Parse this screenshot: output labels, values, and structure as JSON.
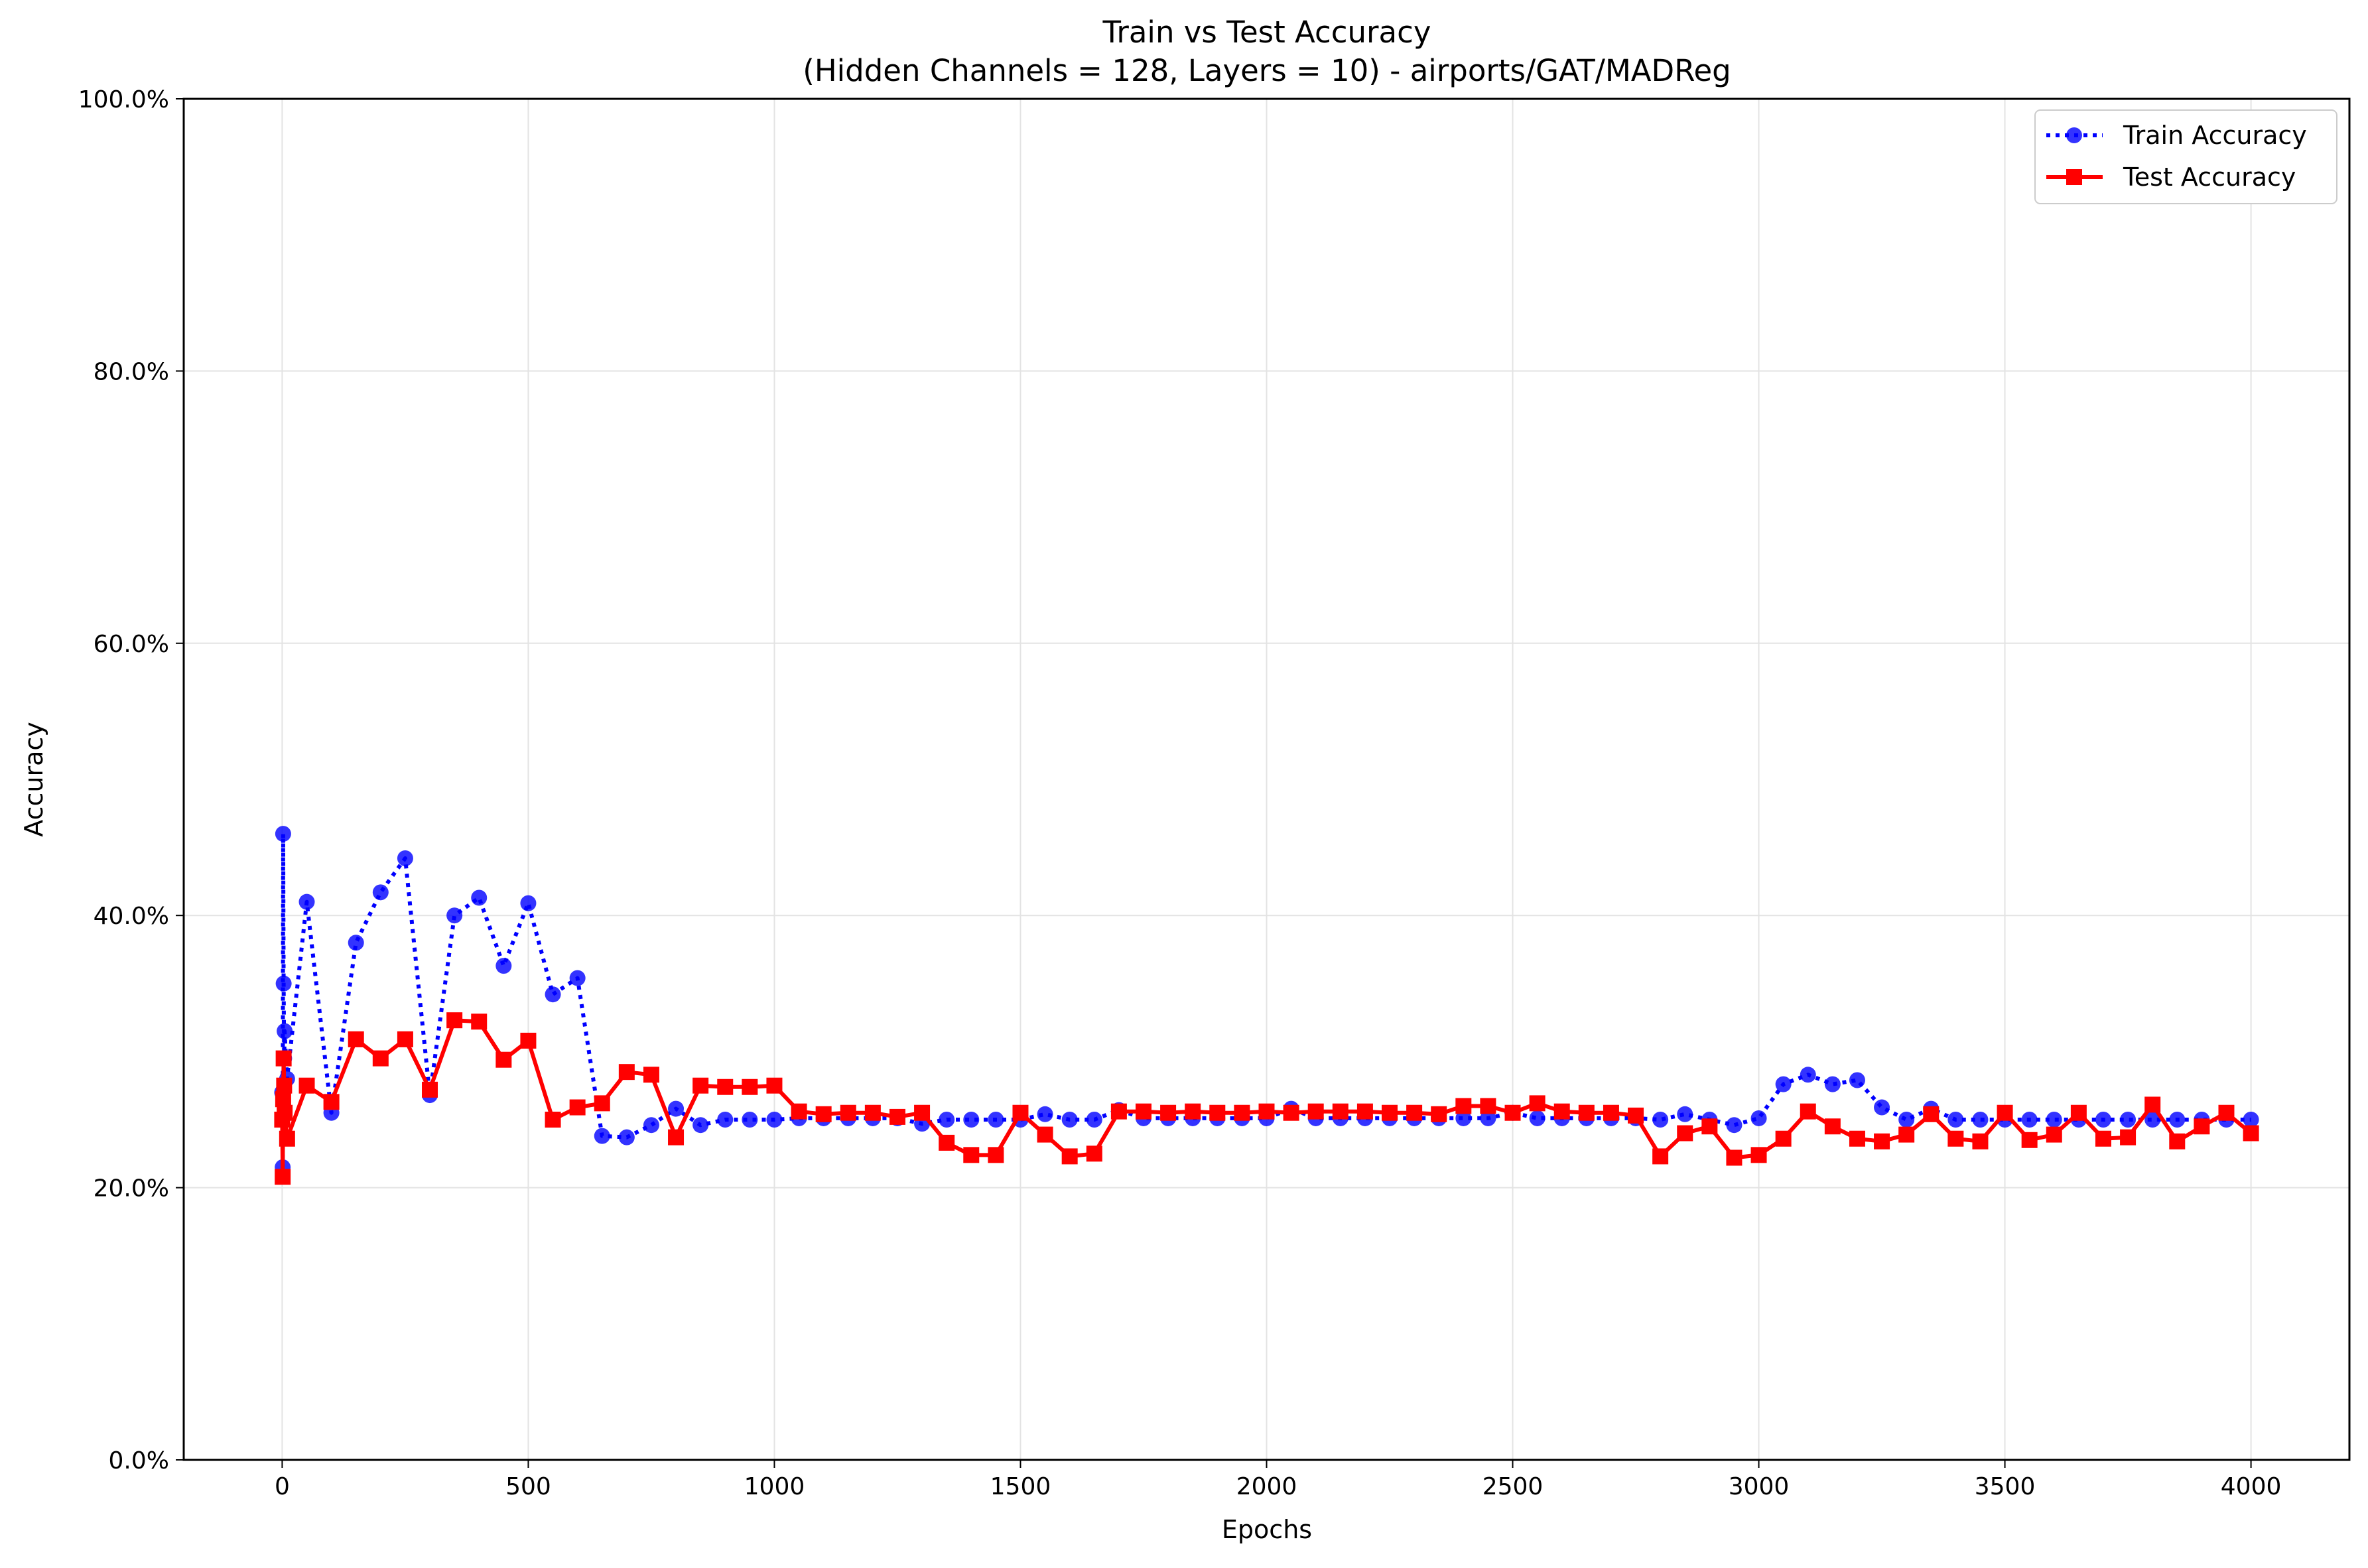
{
  "chart_data": {
    "type": "line",
    "title": "Train vs Test Accuracy",
    "subtitle": "(Hidden Channels = 128, Layers = 10) - airports/GAT/MADReg",
    "xlabel": "Epochs",
    "ylabel": "Accuracy",
    "xlim": [
      -200,
      4200
    ],
    "ylim": [
      0,
      100
    ],
    "grid": true,
    "legend_position": "top-right",
    "x_ticks": [
      0,
      500,
      1000,
      1500,
      2000,
      2500,
      3000,
      3500,
      4000
    ],
    "x_tick_labels": [
      "0",
      "500",
      "1000",
      "1500",
      "2000",
      "2500",
      "3000",
      "3500",
      "4000"
    ],
    "y_ticks": [
      0,
      20,
      40,
      60,
      80,
      100
    ],
    "y_tick_labels": [
      "0.0%",
      "20.0%",
      "40.0%",
      "60.0%",
      "80.0%",
      "100.0%"
    ],
    "series": [
      {
        "name": "Train Accuracy",
        "color": "#0000ff",
        "line_style": "dotted",
        "marker": "circle",
        "x": [
          0,
          1,
          2,
          3,
          4,
          5,
          10,
          50,
          100,
          150,
          200,
          250,
          300,
          350,
          400,
          450,
          500,
          550,
          600,
          650,
          700,
          750,
          800,
          850,
          900,
          950,
          1000,
          1050,
          1100,
          1150,
          1200,
          1250,
          1300,
          1350,
          1400,
          1450,
          1500,
          1550,
          1600,
          1650,
          1700,
          1750,
          1800,
          1850,
          1900,
          1950,
          2000,
          2050,
          2100,
          2150,
          2200,
          2250,
          2300,
          2350,
          2400,
          2450,
          2500,
          2550,
          2600,
          2650,
          2700,
          2750,
          2800,
          2850,
          2900,
          2950,
          3000,
          3050,
          3100,
          3150,
          3200,
          3250,
          3300,
          3350,
          3400,
          3450,
          3500,
          3550,
          3600,
          3650,
          3700,
          3750,
          3800,
          3850,
          3900,
          3950,
          4000
        ],
        "y": [
          27.0,
          21.5,
          46.0,
          35.0,
          29.5,
          31.5,
          28.0,
          41.0,
          25.5,
          38.0,
          41.7,
          44.2,
          26.8,
          40.0,
          41.3,
          36.3,
          40.9,
          34.2,
          35.4,
          23.8,
          23.7,
          24.6,
          25.8,
          24.6,
          25.0,
          25.0,
          25.0,
          25.1,
          25.1,
          25.1,
          25.1,
          25.1,
          24.7,
          25.0,
          25.0,
          25.0,
          25.0,
          25.4,
          25.0,
          25.0,
          25.7,
          25.1,
          25.1,
          25.1,
          25.1,
          25.1,
          25.1,
          25.8,
          25.1,
          25.1,
          25.1,
          25.1,
          25.1,
          25.1,
          25.1,
          25.1,
          25.5,
          25.1,
          25.1,
          25.1,
          25.1,
          25.1,
          25.0,
          25.4,
          25.0,
          24.6,
          25.1,
          27.6,
          28.3,
          27.6,
          27.9,
          25.9,
          25.0,
          25.8,
          25.0,
          25.0,
          25.0,
          25.0,
          25.0,
          25.0,
          25.0,
          25.0,
          25.0,
          25.0,
          25.0,
          25.0,
          25.0
        ]
      },
      {
        "name": "Test Accuracy",
        "color": "#ff0000",
        "line_style": "solid",
        "marker": "square",
        "x": [
          0,
          1,
          2,
          3,
          4,
          5,
          10,
          50,
          100,
          150,
          200,
          250,
          300,
          350,
          400,
          450,
          500,
          550,
          600,
          650,
          700,
          750,
          800,
          850,
          900,
          950,
          1000,
          1050,
          1100,
          1150,
          1200,
          1250,
          1300,
          1350,
          1400,
          1450,
          1500,
          1550,
          1600,
          1650,
          1700,
          1750,
          1800,
          1850,
          1900,
          1950,
          2000,
          2050,
          2100,
          2150,
          2200,
          2250,
          2300,
          2350,
          2400,
          2450,
          2500,
          2550,
          2600,
          2650,
          2700,
          2750,
          2800,
          2850,
          2900,
          2950,
          3000,
          3050,
          3100,
          3150,
          3200,
          3250,
          3300,
          3350,
          3400,
          3450,
          3500,
          3550,
          3600,
          3650,
          3700,
          3750,
          3800,
          3850,
          3900,
          3950,
          4000
        ],
        "y": [
          25.0,
          20.8,
          26.5,
          29.5,
          27.5,
          25.5,
          23.6,
          27.5,
          26.3,
          30.9,
          29.5,
          30.9,
          27.2,
          32.3,
          32.2,
          29.4,
          30.8,
          25.0,
          25.9,
          26.2,
          28.5,
          28.3,
          23.7,
          27.5,
          27.4,
          27.4,
          27.5,
          25.6,
          25.4,
          25.5,
          25.5,
          25.2,
          25.5,
          23.3,
          22.4,
          22.4,
          25.5,
          23.9,
          22.3,
          22.5,
          25.6,
          25.6,
          25.5,
          25.6,
          25.5,
          25.5,
          25.6,
          25.5,
          25.6,
          25.6,
          25.6,
          25.5,
          25.5,
          25.4,
          26.0,
          26.0,
          25.5,
          26.2,
          25.6,
          25.5,
          25.5,
          25.3,
          22.3,
          24.0,
          24.5,
          22.2,
          22.4,
          23.6,
          25.6,
          24.5,
          23.6,
          23.4,
          23.9,
          25.4,
          23.6,
          23.4,
          25.5,
          23.5,
          23.9,
          25.5,
          23.6,
          23.7,
          26.1,
          23.4,
          24.5,
          25.5,
          24.0
        ]
      }
    ]
  }
}
